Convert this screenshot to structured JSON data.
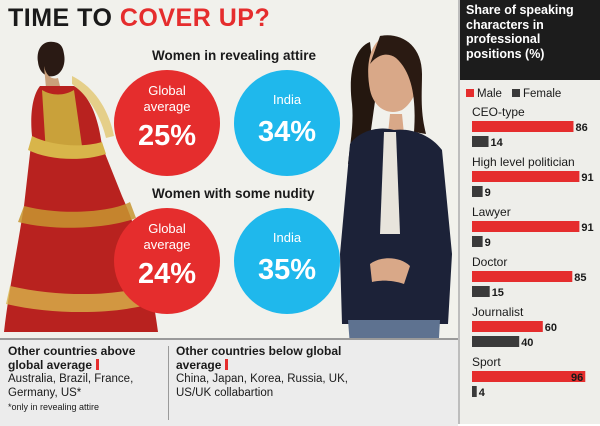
{
  "headline": {
    "part1": "TIME TO ",
    "part2": "COVER UP?"
  },
  "section1": {
    "title": "Women in revealing attire",
    "global_label": "Global average",
    "global_value": "25%",
    "india_label": "India",
    "india_value": "34%"
  },
  "section2": {
    "title": "Women with some nudity",
    "global_label": "Global average",
    "global_value": "24%",
    "india_label": "India",
    "india_value": "35%"
  },
  "footer": {
    "above_title": "Other countries above global average",
    "above_list": "Australia, Brazil, France, Germany, US*",
    "note": "*only in revealing attire",
    "below_title": "Other countries below global average",
    "below_list": "China, Japan, Korea, Russia, UK, US/UK collabartion"
  },
  "colors": {
    "male": "#e52d2d",
    "female": "#3a3a3a",
    "global": "#e52d2d",
    "india": "#1fb8ec"
  },
  "chart_data": {
    "type": "bar",
    "title": "Share of speaking characters in professional positions (%)",
    "categories": [
      "CEO-type",
      "High level politician",
      "Lawyer",
      "Doctor",
      "Journalist",
      "Sport"
    ],
    "series": [
      {
        "name": "Male",
        "values": [
          86,
          91,
          91,
          85,
          60,
          96
        ]
      },
      {
        "name": "Female",
        "values": [
          14,
          9,
          9,
          15,
          40,
          4
        ]
      }
    ],
    "xlim": [
      0,
      100
    ],
    "legend": "top",
    "grid": false
  }
}
